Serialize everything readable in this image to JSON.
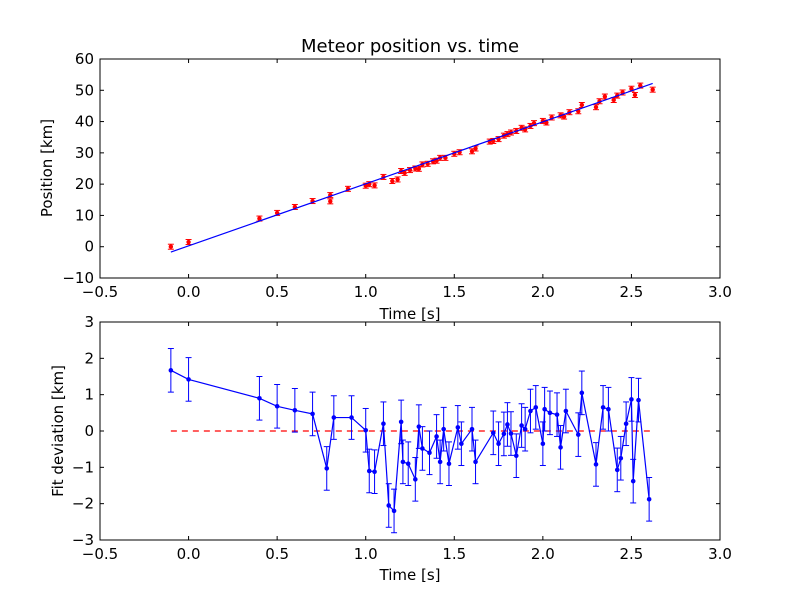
{
  "chart_data": [
    {
      "type": "scatter",
      "title": "Meteor position vs. time",
      "xlabel": "Time [s]",
      "ylabel": "Position [km]",
      "xlim": [
        -0.5,
        3.0
      ],
      "ylim": [
        -10,
        60
      ],
      "xticks": [
        -0.5,
        0.0,
        0.5,
        1.0,
        1.5,
        2.0,
        2.5,
        3.0
      ],
      "xtick_labels": [
        "−0.5",
        "0.0",
        "0.5",
        "1.0",
        "1.5",
        "2.0",
        "2.5",
        "3.0"
      ],
      "yticks": [
        -10,
        0,
        10,
        20,
        30,
        40,
        50,
        60
      ],
      "ytick_labels": [
        "−10",
        "0",
        "10",
        "20",
        "30",
        "40",
        "50",
        "60"
      ],
      "grid": false,
      "colors": {
        "points": "#ff0000",
        "fit": "#0000ff",
        "errorbar": "#ff0000"
      },
      "series": [
        {
          "kind": "measurements",
          "x": [
            -0.1,
            0.0,
            0.4,
            0.5,
            0.6,
            0.7,
            0.8,
            0.8,
            0.9,
            1.0,
            1.02,
            1.05,
            1.1,
            1.15,
            1.18,
            1.2,
            1.22,
            1.25,
            1.28,
            1.3,
            1.32,
            1.35,
            1.38,
            1.4,
            1.42,
            1.45,
            1.5,
            1.53,
            1.6,
            1.62,
            1.7,
            1.72,
            1.75,
            1.78,
            1.8,
            1.82,
            1.85,
            1.88,
            1.9,
            1.93,
            1.95,
            2.0,
            2.02,
            2.05,
            2.1,
            2.12,
            2.15,
            2.2,
            2.22,
            2.3,
            2.32,
            2.35,
            2.4,
            2.42,
            2.45,
            2.5,
            2.52,
            2.55,
            2.62
          ],
          "y": [
            0.0,
            1.5,
            9.0,
            10.8,
            12.7,
            14.6,
            14.5,
            16.5,
            18.5,
            19.5,
            20.0,
            19.6,
            22.3,
            21.0,
            21.5,
            24.2,
            23.6,
            24.5,
            25.0,
            24.9,
            26.3,
            26.5,
            27.3,
            27.5,
            28.4,
            28.4,
            29.7,
            30.2,
            30.5,
            31.4,
            33.6,
            33.8,
            34.4,
            35.5,
            36.0,
            36.5,
            37.0,
            38.0,
            37.5,
            38.6,
            39.5,
            40.2,
            39.7,
            41.3,
            42.0,
            41.6,
            43.0,
            43.3,
            45.3,
            44.6,
            46.5,
            48.0,
            46.9,
            48.3,
            49.3,
            50.5,
            48.5,
            51.5,
            50.2
          ],
          "yerr": 0.8
        },
        {
          "kind": "fit-line",
          "x": [
            -0.1,
            2.62
          ],
          "y": [
            -1.7,
            52.2
          ]
        }
      ]
    },
    {
      "type": "line",
      "xlabel": "Time [s]",
      "ylabel": "Fit deviation [km]",
      "xlim": [
        -0.5,
        3.0
      ],
      "ylim": [
        -3,
        3
      ],
      "xticks": [
        -0.5,
        0.0,
        0.5,
        1.0,
        1.5,
        2.0,
        2.5,
        3.0
      ],
      "xtick_labels": [
        "−0.5",
        "0.0",
        "0.5",
        "1.0",
        "1.5",
        "2.0",
        "2.5",
        "3.0"
      ],
      "yticks": [
        -3,
        -2,
        -1,
        0,
        1,
        2,
        3
      ],
      "ytick_labels": [
        "−3",
        "−2",
        "−1",
        "0",
        "1",
        "2",
        "3"
      ],
      "grid": false,
      "colors": {
        "line": "#0000ff",
        "zero": "#ff0000"
      },
      "zero_line": {
        "y": 0,
        "x": [
          -0.1,
          2.62
        ],
        "style": "dashed"
      },
      "series": [
        {
          "kind": "deviation",
          "x": [
            -0.1,
            0.0,
            0.4,
            0.5,
            0.6,
            0.7,
            0.78,
            0.82,
            0.92,
            1.0,
            1.02,
            1.05,
            1.1,
            1.13,
            1.16,
            1.2,
            1.21,
            1.24,
            1.28,
            1.3,
            1.32,
            1.36,
            1.4,
            1.42,
            1.44,
            1.47,
            1.52,
            1.54,
            1.6,
            1.62,
            1.72,
            1.75,
            1.78,
            1.8,
            1.82,
            1.85,
            1.88,
            1.9,
            1.93,
            1.96,
            2.0,
            2.01,
            2.04,
            2.08,
            2.1,
            2.13,
            2.2,
            2.22,
            2.3,
            2.34,
            2.37,
            2.42,
            2.44,
            2.47,
            2.5,
            2.51,
            2.54,
            2.6
          ],
          "y": [
            1.67,
            1.42,
            0.9,
            0.68,
            0.57,
            0.47,
            -1.03,
            0.37,
            0.37,
            0.02,
            -1.1,
            -1.12,
            0.2,
            -2.05,
            -2.2,
            0.25,
            -0.85,
            -0.9,
            -1.33,
            0.12,
            -0.48,
            -0.6,
            -0.15,
            -0.85,
            0.05,
            -0.9,
            0.1,
            -0.35,
            0.05,
            -0.85,
            -0.05,
            -0.35,
            -0.08,
            0.18,
            -0.07,
            -0.68,
            0.15,
            0.05,
            0.55,
            0.65,
            -0.35,
            0.6,
            0.5,
            0.45,
            -0.45,
            0.55,
            -0.1,
            1.05,
            -0.92,
            0.65,
            0.6,
            -1.07,
            -0.75,
            0.2,
            0.87,
            -1.38,
            0.85,
            -1.88
          ],
          "yerr": 0.6
        }
      ]
    }
  ]
}
